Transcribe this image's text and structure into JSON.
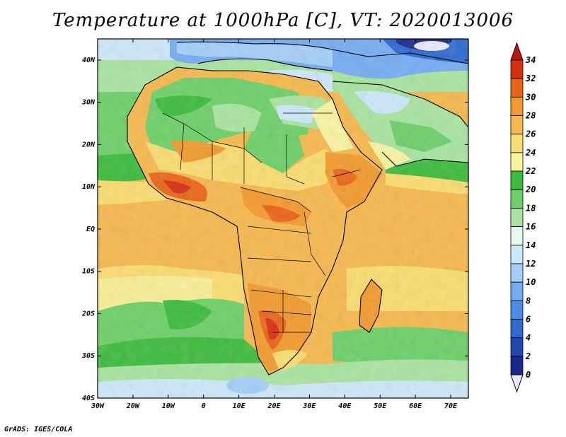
{
  "title": "Temperature at 1000hPa [C], VT: 2020013006",
  "credit": "GrADS: IGES/COLA",
  "map": {
    "lon_range": [
      -30,
      75
    ],
    "lat_range": [
      -40,
      45
    ],
    "lon_ticks": [
      {
        "value": -30,
        "label": "30W"
      },
      {
        "value": -20,
        "label": "20W"
      },
      {
        "value": -10,
        "label": "10W"
      },
      {
        "value": 0,
        "label": "0"
      },
      {
        "value": 10,
        "label": "10E"
      },
      {
        "value": 20,
        "label": "20E"
      },
      {
        "value": 30,
        "label": "30E"
      },
      {
        "value": 40,
        "label": "40E"
      },
      {
        "value": 50,
        "label": "50E"
      },
      {
        "value": 60,
        "label": "60E"
      },
      {
        "value": 70,
        "label": "70E"
      }
    ],
    "lat_ticks": [
      {
        "value": 40,
        "label": "40N"
      },
      {
        "value": 30,
        "label": "30N"
      },
      {
        "value": 20,
        "label": "20N"
      },
      {
        "value": 10,
        "label": "10N"
      },
      {
        "value": 0,
        "label": "EQ"
      },
      {
        "value": -10,
        "label": "10S"
      },
      {
        "value": -20,
        "label": "20S"
      },
      {
        "value": -30,
        "label": "30S"
      },
      {
        "value": -40,
        "label": "40S"
      }
    ]
  },
  "colorbar": {
    "levels": [
      0,
      2,
      4,
      6,
      8,
      10,
      12,
      14,
      16,
      18,
      20,
      22,
      24,
      26,
      28,
      30,
      32,
      34
    ],
    "labels": [
      "34",
      "32",
      "30",
      "28",
      "26",
      "24",
      "22",
      "20",
      "18",
      "16",
      "14",
      "12",
      "10",
      "8",
      "6",
      "4",
      "2",
      "0"
    ],
    "colors": [
      "#e8e8ff",
      "#1a2a8c",
      "#2048b0",
      "#2e6ad0",
      "#4a8ce8",
      "#74acf2",
      "#a4cef8",
      "#cbe8fa",
      "#e6f8f0",
      "#a8e4a0",
      "#6cd068",
      "#3cbc3c",
      "#f8f4a0",
      "#fadc70",
      "#f6b84c",
      "#f29a2c",
      "#ea6418",
      "#d63010",
      "#c01408"
    ]
  }
}
